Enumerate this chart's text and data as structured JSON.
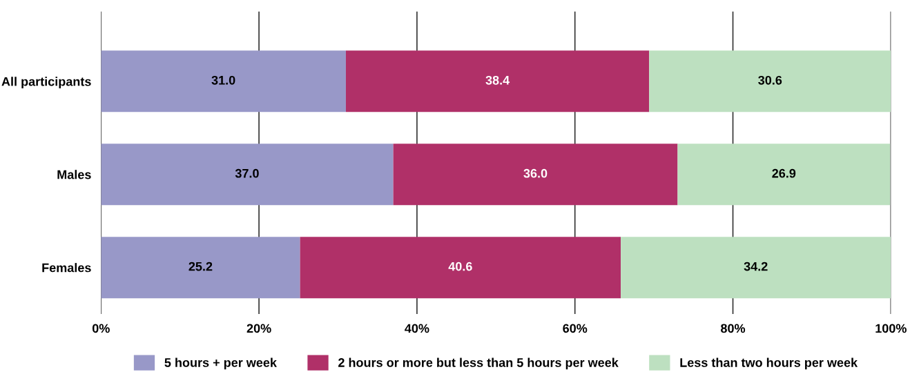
{
  "chart_data": {
    "type": "bar",
    "orientation": "horizontal",
    "stacked": true,
    "categories": [
      "All participants",
      "Males",
      "Females"
    ],
    "series": [
      {
        "name": "5 hours + per week",
        "color": "#9898c8",
        "values": [
          31.0,
          37.0,
          25.2
        ],
        "value_labels": [
          "31.0",
          "37.0",
          "25.2"
        ]
      },
      {
        "name": "2 hours or more but less than 5 hours per week",
        "color": "#b03068",
        "values": [
          38.4,
          36.0,
          40.6
        ],
        "value_labels": [
          "38.4",
          "36.0",
          "40.6"
        ]
      },
      {
        "name": "Less than two hours per week",
        "color": "#bde0c0",
        "values": [
          30.6,
          26.9,
          34.2
        ],
        "value_labels": [
          "30.6",
          "26.9",
          "34.2"
        ]
      }
    ],
    "xlim": [
      0,
      100
    ],
    "xticks": [
      {
        "value": 0,
        "label": "0%"
      },
      {
        "value": 20,
        "label": "20%"
      },
      {
        "value": 40,
        "label": "40%"
      },
      {
        "value": 60,
        "label": "60%"
      },
      {
        "value": 80,
        "label": "80%"
      },
      {
        "value": 100,
        "label": "100%"
      }
    ],
    "grid": "x",
    "legend": "bottom"
  }
}
